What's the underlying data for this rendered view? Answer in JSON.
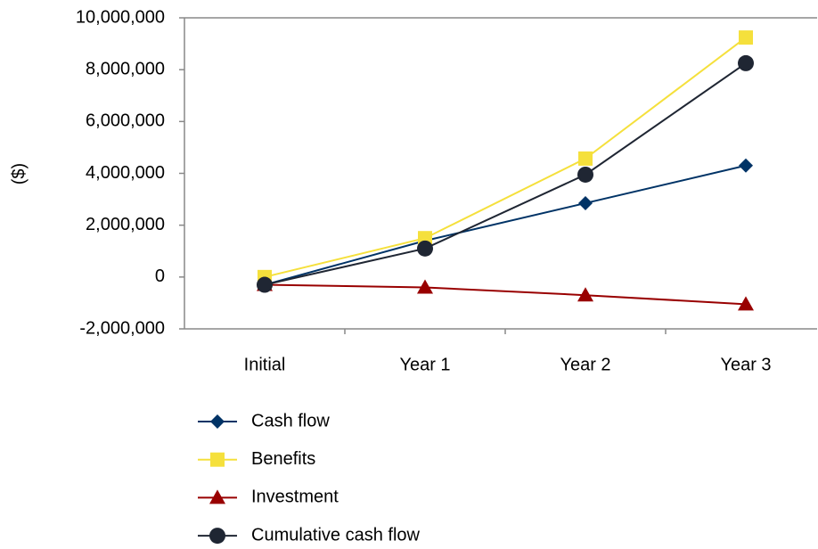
{
  "chart_data": {
    "type": "line",
    "y_label": "($)",
    "categories": [
      "Initial",
      "Year 1",
      "Year 2",
      "Year 3"
    ],
    "series": [
      {
        "name": "Cash flow",
        "color": "#003366",
        "marker": "diamond",
        "values": [
          -300000,
          1400000,
          2850000,
          4300000
        ]
      },
      {
        "name": "Benefits",
        "color": "#f5e03c",
        "marker": "square",
        "values": [
          0,
          1500000,
          4570000,
          9240000
        ]
      },
      {
        "name": "Investment",
        "color": "#990000",
        "marker": "triangle",
        "values": [
          -300000,
          -400000,
          -700000,
          -1050000
        ]
      },
      {
        "name": "Cumulative cash flow",
        "color": "#1f2633",
        "marker": "circle",
        "values": [
          -300000,
          1100000,
          3950000,
          8250000
        ]
      }
    ],
    "ylim": [
      -2000000,
      10000000
    ],
    "yticks": [
      {
        "value": -2000000,
        "label": "-2,000,000"
      },
      {
        "value": 0,
        "label": "0"
      },
      {
        "value": 2000000,
        "label": "2,000,000"
      },
      {
        "value": 4000000,
        "label": "4,000,000"
      },
      {
        "value": 6000000,
        "label": "6,000,000"
      },
      {
        "value": 8000000,
        "label": "8,000,000"
      },
      {
        "value": 10000000,
        "label": "10,000,000"
      }
    ],
    "grid": false,
    "legend": "bottom"
  }
}
